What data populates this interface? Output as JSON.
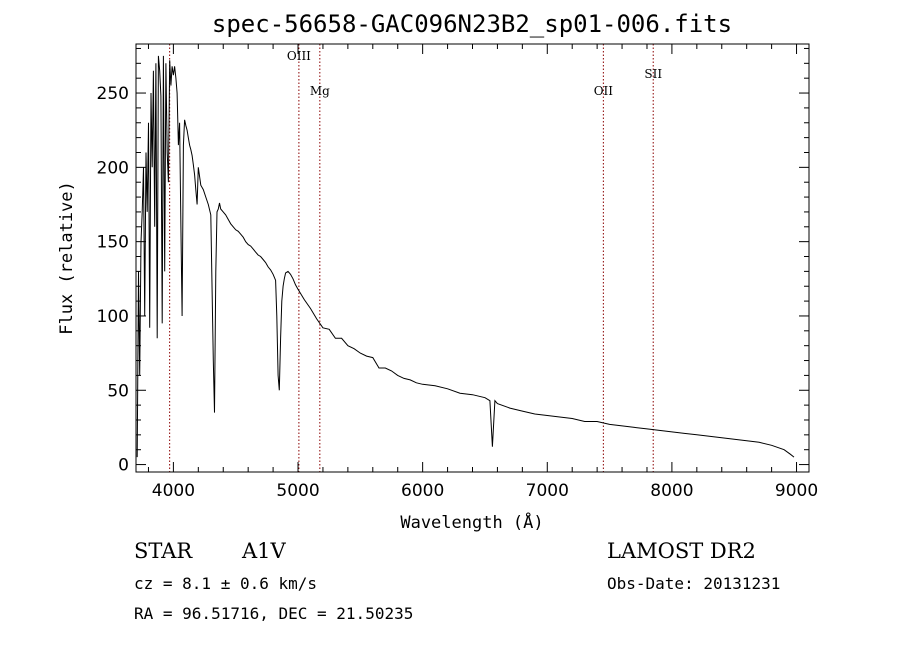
{
  "chart_data": {
    "type": "line",
    "title": "spec-56658-GAC096N23B2_sp01-006.fits",
    "xlabel": "Wavelength (Å)",
    "ylabel": "Flux (relative)",
    "xlim": [
      3700,
      9100
    ],
    "ylim": [
      -5,
      283
    ],
    "xticks": [
      4000,
      5000,
      6000,
      7000,
      8000,
      9000
    ],
    "yticks": [
      0,
      50,
      100,
      150,
      200,
      250
    ],
    "grid": false,
    "line_color": "#000000",
    "marker_color": "#8b0000",
    "x": [
      3710,
      3720,
      3730,
      3740,
      3750,
      3760,
      3770,
      3780,
      3790,
      3800,
      3810,
      3820,
      3830,
      3840,
      3850,
      3860,
      3870,
      3880,
      3890,
      3900,
      3910,
      3920,
      3930,
      3940,
      3950,
      3960,
      3970,
      3980,
      3990,
      4000,
      4010,
      4020,
      4030,
      4040,
      4050,
      4060,
      4070,
      4080,
      4090,
      4100,
      4110,
      4120,
      4130,
      4140,
      4150,
      4160,
      4170,
      4180,
      4190,
      4200,
      4220,
      4240,
      4260,
      4280,
      4300,
      4320,
      4330,
      4340,
      4350,
      4360,
      4370,
      4380,
      4400,
      4420,
      4440,
      4460,
      4480,
      4500,
      4520,
      4540,
      4560,
      4580,
      4600,
      4620,
      4640,
      4660,
      4680,
      4700,
      4720,
      4740,
      4760,
      4780,
      4800,
      4820,
      4830,
      4840,
      4850,
      4860,
      4870,
      4880,
      4890,
      4900,
      4920,
      4940,
      4960,
      4980,
      5000,
      5050,
      5100,
      5150,
      5200,
      5250,
      5300,
      5350,
      5400,
      5450,
      5500,
      5550,
      5600,
      5650,
      5700,
      5750,
      5800,
      5850,
      5900,
      5950,
      6000,
      6100,
      6200,
      6300,
      6400,
      6500,
      6540,
      6560,
      6580,
      6600,
      6700,
      6800,
      6900,
      7000,
      7100,
      7200,
      7300,
      7400,
      7500,
      7600,
      7700,
      7800,
      7900,
      8000,
      8100,
      8200,
      8300,
      8400,
      8500,
      8600,
      8700,
      8800,
      8900,
      8950,
      8980
    ],
    "values": [
      5,
      130,
      60,
      150,
      170,
      200,
      100,
      210,
      170,
      230,
      92,
      250,
      200,
      265,
      160,
      270,
      85,
      275,
      265,
      248,
      95,
      275,
      130,
      270,
      210,
      190,
      272,
      255,
      268,
      262,
      268,
      260,
      250,
      215,
      230,
      160,
      100,
      215,
      232,
      228,
      225,
      220,
      215,
      212,
      208,
      202,
      195,
      185,
      175,
      200,
      188,
      185,
      180,
      175,
      168,
      70,
      35,
      130,
      170,
      172,
      176,
      172,
      170,
      168,
      165,
      162,
      160,
      158,
      157,
      155,
      153,
      150,
      148,
      147,
      145,
      143,
      141,
      140,
      138,
      136,
      133,
      131,
      128,
      124,
      100,
      60,
      50,
      85,
      110,
      120,
      125,
      129,
      130,
      128,
      125,
      121,
      118,
      111,
      105,
      98,
      92,
      91,
      85,
      85,
      80,
      78,
      75,
      73,
      72,
      65,
      65,
      63,
      60,
      58,
      57,
      55,
      54,
      53,
      51,
      48,
      47,
      45,
      43,
      12,
      43,
      41,
      38,
      36,
      34,
      33,
      32,
      31,
      29,
      29,
      27,
      26,
      25,
      24,
      23,
      22,
      21,
      20,
      19,
      18,
      17,
      16,
      15,
      13,
      10,
      7,
      5
    ],
    "lines": [
      {
        "name": "",
        "x": 3970
      },
      {
        "name": "OIII",
        "x": 5007
      },
      {
        "name": "Mg",
        "x": 5175
      },
      {
        "name": "OII",
        "x": 7450
      },
      {
        "name": "SII",
        "x": 7850
      }
    ]
  },
  "info": {
    "object_class": "STAR",
    "subclass": "A1V",
    "survey": "LAMOST DR2",
    "cz": "cz = 8.1 ± 0.6 km/s",
    "obs_date": "Obs-Date: 20131231",
    "coords": "RA =  96.51716, DEC =  21.50235"
  }
}
